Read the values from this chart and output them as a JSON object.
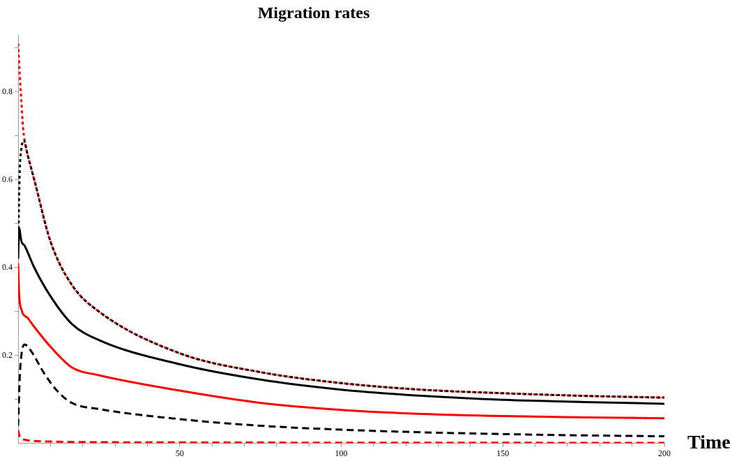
{
  "chart_data": {
    "type": "line",
    "title": "Migration rates",
    "xlabel": "Time",
    "xlim": [
      0,
      200
    ],
    "ylim": [
      0,
      0.93
    ],
    "xticks": [
      {
        "value": 10,
        "label": null
      },
      {
        "value": 20,
        "label": null
      },
      {
        "value": 30,
        "label": null
      },
      {
        "value": 40,
        "label": null
      },
      50,
      {
        "value": 60,
        "label": null
      },
      {
        "value": 70,
        "label": null
      },
      {
        "value": 80,
        "label": null
      },
      {
        "value": 90,
        "label": null
      },
      100,
      {
        "value": 110,
        "label": null
      },
      {
        "value": 120,
        "label": null
      },
      {
        "value": 130,
        "label": null
      },
      {
        "value": 140,
        "label": null
      },
      150,
      {
        "value": 160,
        "label": null
      },
      {
        "value": 170,
        "label": null
      },
      {
        "value": 180,
        "label": null
      },
      {
        "value": 190,
        "label": null
      },
      200
    ],
    "yticks": [
      {
        "value": 0.1,
        "label": null
      },
      0.2,
      {
        "value": 0.3,
        "label": null
      },
      0.4,
      {
        "value": 0.5,
        "label": null
      },
      0.6,
      {
        "value": 0.7,
        "label": null
      },
      0.8,
      {
        "value": 0.9,
        "label": null
      }
    ],
    "grid": false,
    "legend": false,
    "marker": "none",
    "series": [
      {
        "color": "#000000",
        "line_style": "dashed",
        "x": [
          0,
          0.5,
          1,
          2,
          4,
          8,
          12,
          16.6,
          25,
          50,
          75,
          100,
          125,
          150,
          175,
          200
        ],
        "values": [
          0.04,
          0.15,
          0.2,
          0.225,
          0.21,
          0.16,
          0.12,
          0.092,
          0.078,
          0.055,
          0.04,
          0.031,
          0.025,
          0.021,
          0.018,
          0.016
        ]
      },
      {
        "color": "#ff0000",
        "line_style": "dashed",
        "x": [
          0,
          0.5,
          2,
          10,
          50,
          200
        ],
        "values": [
          0.03,
          0.015,
          0.008,
          0.004,
          0.002,
          0.001
        ]
      },
      {
        "color": "#ff0000",
        "line_style": "solid",
        "x": [
          0,
          0.3,
          1,
          3,
          5,
          10,
          16.6,
          25,
          50,
          75,
          100,
          125,
          150,
          175,
          200
        ],
        "values": [
          0.41,
          0.34,
          0.305,
          0.285,
          0.265,
          0.22,
          0.173,
          0.155,
          0.12,
          0.092,
          0.076,
          0.067,
          0.062,
          0.059,
          0.057
        ]
      },
      {
        "color": "#000000",
        "line_style": "solid",
        "x": [
          0,
          0.3,
          1,
          2,
          5,
          10,
          16.6,
          25,
          50,
          75,
          100,
          125,
          150,
          175,
          200
        ],
        "values": [
          0.42,
          0.49,
          0.46,
          0.45,
          0.4,
          0.335,
          0.272,
          0.235,
          0.18,
          0.145,
          0.122,
          0.108,
          0.099,
          0.094,
          0.09
        ]
      },
      {
        "color": "#000000",
        "line_style": "dotted",
        "x": [
          0,
          0.5,
          1,
          1.7,
          3,
          5,
          10,
          16.6,
          25,
          50,
          75,
          100,
          125,
          150,
          175,
          200
        ],
        "values": [
          0.45,
          0.62,
          0.67,
          0.69,
          0.655,
          0.6,
          0.46,
          0.361,
          0.3,
          0.205,
          0.162,
          0.137,
          0.122,
          0.114,
          0.108,
          0.104
        ]
      },
      {
        "color": "#ff0000",
        "line_style": "dotted",
        "x": [
          0,
          0.5,
          1,
          1.5,
          2,
          3,
          5,
          10,
          16.6,
          25,
          50,
          75,
          100,
          125,
          150,
          175,
          200
        ],
        "values": [
          0.91,
          0.84,
          0.78,
          0.72,
          0.69,
          0.655,
          0.6,
          0.46,
          0.361,
          0.3,
          0.205,
          0.162,
          0.137,
          0.122,
          0.114,
          0.108,
          0.104
        ]
      }
    ]
  }
}
